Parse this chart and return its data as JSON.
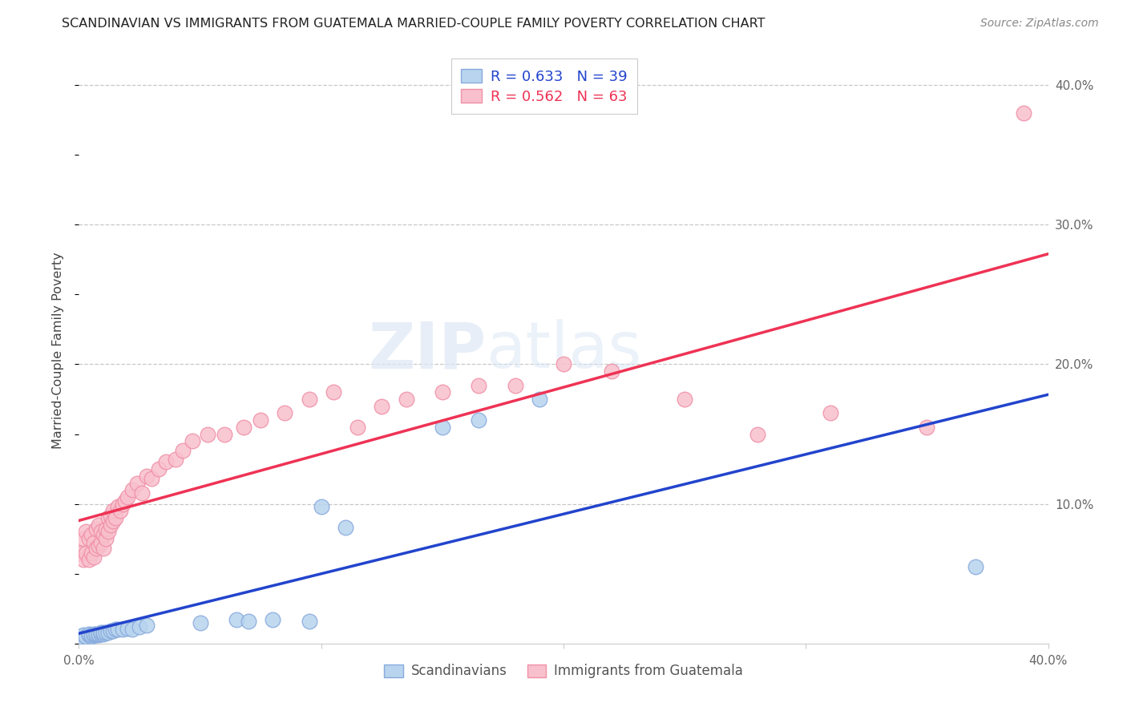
{
  "title": "SCANDINAVIAN VS IMMIGRANTS FROM GUATEMALA MARRIED-COUPLE FAMILY POVERTY CORRELATION CHART",
  "source": "Source: ZipAtlas.com",
  "ylabel": "Married-Couple Family Poverty",
  "xmin": 0.0,
  "xmax": 0.4,
  "ymin": 0.0,
  "ymax": 0.42,
  "xtick_vals": [
    0.0,
    0.1,
    0.2,
    0.3,
    0.4
  ],
  "xtick_labels": [
    "0.0%",
    "",
    "",
    "",
    "40.0%"
  ],
  "ytick_vals_right": [
    0.1,
    0.2,
    0.3,
    0.4
  ],
  "ytick_labels_right": [
    "10.0%",
    "20.0%",
    "30.0%",
    "40.0%"
  ],
  "grid_color": "#c8c8c8",
  "background_color": "#ffffff",
  "watermark_zip": "ZIP",
  "watermark_atlas": "atlas",
  "scand_fill": "#b8d4ee",
  "scand_edge": "#88aadd",
  "guate_fill": "#f8c0cc",
  "guate_edge": "#f090a8",
  "scand_line_color": "#2244cc",
  "guate_line_color": "#ee3355",
  "legend_label_scand": "Scandinavians",
  "legend_label_guate": "Immigrants from Guatemala",
  "scand_x": [
    0.001,
    0.002,
    0.003,
    0.004,
    0.004,
    0.005,
    0.005,
    0.006,
    0.006,
    0.007,
    0.007,
    0.008,
    0.008,
    0.009,
    0.009,
    0.01,
    0.01,
    0.011,
    0.012,
    0.013,
    0.014,
    0.015,
    0.016,
    0.018,
    0.02,
    0.022,
    0.025,
    0.028,
    0.05,
    0.065,
    0.07,
    0.08,
    0.095,
    0.1,
    0.11,
    0.15,
    0.165,
    0.19,
    0.37
  ],
  "scand_y": [
    0.005,
    0.006,
    0.005,
    0.006,
    0.007,
    0.005,
    0.006,
    0.006,
    0.007,
    0.006,
    0.007,
    0.006,
    0.007,
    0.007,
    0.008,
    0.007,
    0.008,
    0.008,
    0.008,
    0.009,
    0.009,
    0.01,
    0.01,
    0.01,
    0.011,
    0.01,
    0.012,
    0.013,
    0.015,
    0.017,
    0.016,
    0.017,
    0.016,
    0.098,
    0.083,
    0.155,
    0.16,
    0.175,
    0.055
  ],
  "guate_x": [
    0.001,
    0.002,
    0.002,
    0.003,
    0.003,
    0.004,
    0.004,
    0.005,
    0.005,
    0.006,
    0.006,
    0.007,
    0.007,
    0.008,
    0.008,
    0.009,
    0.009,
    0.01,
    0.01,
    0.011,
    0.011,
    0.012,
    0.012,
    0.013,
    0.013,
    0.014,
    0.014,
    0.015,
    0.016,
    0.017,
    0.018,
    0.019,
    0.02,
    0.022,
    0.024,
    0.026,
    0.028,
    0.03,
    0.033,
    0.036,
    0.04,
    0.043,
    0.047,
    0.053,
    0.06,
    0.068,
    0.075,
    0.085,
    0.095,
    0.105,
    0.115,
    0.125,
    0.135,
    0.15,
    0.165,
    0.18,
    0.2,
    0.22,
    0.25,
    0.28,
    0.31,
    0.35,
    0.39
  ],
  "guate_y": [
    0.065,
    0.06,
    0.075,
    0.065,
    0.08,
    0.06,
    0.075,
    0.065,
    0.078,
    0.062,
    0.072,
    0.068,
    0.082,
    0.07,
    0.085,
    0.072,
    0.08,
    0.068,
    0.078,
    0.075,
    0.082,
    0.08,
    0.09,
    0.085,
    0.092,
    0.088,
    0.095,
    0.09,
    0.098,
    0.095,
    0.1,
    0.102,
    0.105,
    0.11,
    0.115,
    0.108,
    0.12,
    0.118,
    0.125,
    0.13,
    0.132,
    0.138,
    0.145,
    0.15,
    0.15,
    0.155,
    0.16,
    0.165,
    0.175,
    0.18,
    0.155,
    0.17,
    0.175,
    0.18,
    0.185,
    0.185,
    0.2,
    0.195,
    0.175,
    0.15,
    0.165,
    0.155,
    0.38
  ]
}
